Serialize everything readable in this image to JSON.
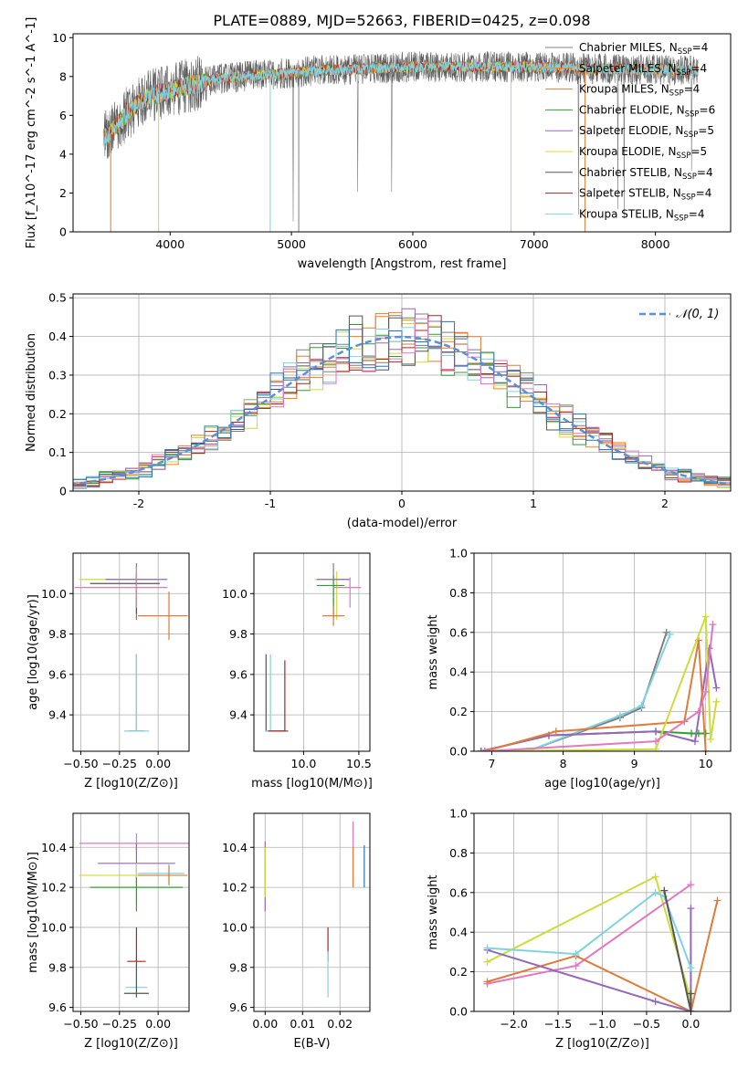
{
  "figure": {
    "title": "PLATE=0889, MJD=52663, FIBERID=0425, z=0.098"
  },
  "legend_entries": [
    {
      "name": "Chabrier MILES",
      "suffix": "4",
      "color": "#7f7f7f"
    },
    {
      "name": "Salpeter MILES",
      "suffix": "4",
      "color": "#ff7f0e"
    },
    {
      "name": "Kroupa MILES",
      "suffix": "4",
      "color": "#e07b39"
    },
    {
      "name": "Chabrier ELODIE",
      "suffix": "6",
      "color": "#2ca02c"
    },
    {
      "name": "Salpeter ELODIE",
      "suffix": "5",
      "color": "#9467bd"
    },
    {
      "name": "Kroupa ELODIE",
      "suffix": "5",
      "color": "#dbdb3d"
    },
    {
      "name": "Chabrier STELIB",
      "suffix": "4",
      "color": "#555555"
    },
    {
      "name": "Salpeter STELIB",
      "suffix": "4",
      "color": "#b22222"
    },
    {
      "name": "Kroupa STELIB",
      "suffix": "4",
      "color": "#7fd3e0"
    }
  ],
  "chart_data": [
    {
      "id": "spectrum",
      "type": "line",
      "xlabel": "wavelength [Angstrom, rest frame]",
      "ylabel": "Flux [f_λ10^-17 erg cm^-2 s^-1 A^-1]",
      "xlim": [
        3200,
        8620
      ],
      "ylim": [
        0,
        10.2
      ],
      "xticks": [
        4000,
        5000,
        6000,
        7000,
        8000
      ],
      "yticks": [
        0,
        2,
        4,
        6,
        8,
        10
      ],
      "continuum": {
        "x": [
          3450,
          3500,
          3600,
          3700,
          3800,
          3900,
          4000,
          4200,
          4400,
          4600,
          4800,
          5000,
          5200,
          5400,
          5600,
          5800,
          6000,
          6200,
          6400,
          6600,
          6800,
          7000,
          7200,
          7400,
          7600,
          7800,
          8000,
          8200,
          8350
        ],
        "y": [
          4.8,
          5.0,
          5.8,
          6.4,
          6.9,
          7.1,
          7.3,
          7.6,
          7.9,
          8.0,
          8.1,
          8.2,
          8.3,
          8.35,
          8.4,
          8.45,
          8.5,
          8.5,
          8.5,
          8.5,
          8.5,
          8.5,
          8.45,
          8.4,
          8.4,
          8.35,
          8.35,
          8.3,
          8.3
        ]
      }
    },
    {
      "id": "residuals",
      "type": "line",
      "xlabel": "(data-model)/error",
      "ylabel": "Normed distribution",
      "xlim": [
        -2.5,
        2.5
      ],
      "ylim": [
        0,
        0.51
      ],
      "xticks": [
        -2,
        -1,
        0,
        1,
        2
      ],
      "yticks": [
        0.0,
        0.1,
        0.2,
        0.3,
        0.4,
        0.5
      ],
      "legend": "𝒩(0, 1)",
      "gaussian": {
        "mu": 0,
        "sigma": 1
      }
    },
    {
      "id": "age-vs-Z",
      "type": "scatter",
      "xlabel": "Z [log10(Z/Z⊙)]",
      "ylabel": "age  [log10(age/yr)]",
      "xlim": [
        -0.55,
        0.2
      ],
      "ylim": [
        9.22,
        10.2
      ],
      "xticks": [
        -0.5,
        -0.25,
        0.0
      ],
      "xticklabels": [
        "−0.50",
        "−0.25",
        "0.00"
      ],
      "yticks": [
        9.4,
        9.6,
        9.8,
        10.0
      ],
      "yticklabels": [
        "9.4",
        "9.6",
        "9.8",
        "10.0"
      ],
      "points": [
        {
          "x": -0.14,
          "y": 10.07,
          "xerr": [
            0.37,
            0.13
          ],
          "yerr": [
            0.2,
            0.04
          ],
          "color": "#cddc39"
        },
        {
          "x": -0.14,
          "y": 10.07,
          "xerr": [
            0.2,
            0.2
          ],
          "yerr": [
            0.2,
            0.08
          ],
          "color": "#9467bd"
        },
        {
          "x": -0.14,
          "y": 10.05,
          "xerr": [
            0.3,
            0.15
          ],
          "yerr": [
            0.15,
            0.05
          ],
          "color": "#555555"
        },
        {
          "x": -0.14,
          "y": 10.03,
          "xerr": [
            0.4,
            0.2
          ],
          "yerr": [
            0.1,
            0.1
          ],
          "color": "#e377c2"
        },
        {
          "x": 0.07,
          "y": 9.89,
          "xerr": [
            0.2,
            0.12
          ],
          "yerr": [
            0.12,
            0.12
          ],
          "color": "#e07b39"
        },
        {
          "x": -0.14,
          "y": 9.32,
          "xerr": [
            0.05,
            0.05
          ],
          "yerr": [
            0.0,
            0.38
          ],
          "color": "#555555"
        },
        {
          "x": -0.14,
          "y": 9.32,
          "xerr": [
            0.08,
            0.08
          ],
          "yerr": [
            0.0,
            0.38
          ],
          "color": "#7fd3e0"
        }
      ]
    },
    {
      "id": "age-vs-mass",
      "type": "scatter",
      "xlabel": "mass [log10(M/M⊙)]",
      "ylabel": "",
      "xlim": [
        9.55,
        10.6
      ],
      "ylim": [
        9.22,
        10.2
      ],
      "xticks": [
        10.0,
        10.5
      ],
      "xticklabels": [
        "10.0",
        "10.5"
      ],
      "yticks": [
        9.4,
        9.6,
        9.8,
        10.0
      ],
      "yticklabels": [
        "9.4",
        "9.6",
        "9.8",
        "10.0"
      ],
      "points": [
        {
          "x": 10.3,
          "y": 10.07,
          "xerr": [
            0.2,
            0.1
          ],
          "yerr": [
            0.2,
            0.04
          ],
          "color": "#cddc39"
        },
        {
          "x": 10.27,
          "y": 10.07,
          "xerr": [
            0.15,
            0.15
          ],
          "yerr": [
            0.2,
            0.08
          ],
          "color": "#9467bd"
        },
        {
          "x": 10.27,
          "y": 10.04,
          "xerr": [
            0.15,
            0.1
          ],
          "yerr": [
            0.15,
            0.05
          ],
          "color": "#2ca02c"
        },
        {
          "x": 10.42,
          "y": 10.03,
          "xerr": [
            0.15,
            0.1
          ],
          "yerr": [
            0.1,
            0.05
          ],
          "color": "#e377c2"
        },
        {
          "x": 10.27,
          "y": 9.89,
          "xerr": [
            0.1,
            0.1
          ],
          "yerr": [
            0.05,
            0.05
          ],
          "color": "#e07b39"
        },
        {
          "x": 9.66,
          "y": 9.32,
          "xerr": [
            0.0,
            0.2
          ],
          "yerr": [
            0.0,
            0.38
          ],
          "color": "#555555"
        },
        {
          "x": 9.7,
          "y": 9.32,
          "xerr": [
            0.05,
            0.08
          ],
          "yerr": [
            0.0,
            0.38
          ],
          "color": "#7fd3e0"
        },
        {
          "x": 9.83,
          "y": 9.32,
          "xerr": [
            0.15,
            0.0
          ],
          "yerr": [
            0.0,
            0.35
          ],
          "color": "#b22222"
        }
      ]
    },
    {
      "id": "mass-weight-vs-age",
      "type": "line",
      "xlabel": "age  [log10(age/yr)]",
      "ylabel": "mass weight",
      "xlim": [
        6.75,
        10.35
      ],
      "ylim": [
        0,
        1.0
      ],
      "xticks": [
        7,
        8,
        9,
        10
      ],
      "xticklabels": [
        "7",
        "8",
        "9",
        "10"
      ],
      "yticks": [
        0.0,
        0.2,
        0.4,
        0.6,
        0.8,
        1.0
      ],
      "yticklabels": [
        "0.0",
        "0.2",
        "0.4",
        "0.6",
        "0.8",
        "1.0"
      ],
      "series": [
        {
          "color": "#7f7f7f",
          "x": [
            6.85,
            7.5,
            8.8,
            9.1,
            9.45
          ],
          "y": [
            0.0,
            0.0,
            0.17,
            0.22,
            0.6
          ]
        },
        {
          "color": "#7fd3e0",
          "x": [
            6.9,
            7.5,
            8.8,
            9.1,
            9.5
          ],
          "y": [
            0.0,
            0.0,
            0.18,
            0.23,
            0.59
          ]
        },
        {
          "color": "#2ca02c",
          "x": [
            6.85,
            7.8,
            9.3,
            9.8,
            9.9,
            10.0
          ],
          "y": [
            0.0,
            0.08,
            0.1,
            0.09,
            0.09,
            0.09
          ]
        },
        {
          "color": "#9467bd",
          "x": [
            6.85,
            7.8,
            9.3,
            9.85,
            10.05,
            10.15
          ],
          "y": [
            0.0,
            0.08,
            0.1,
            0.05,
            0.52,
            0.32
          ]
        },
        {
          "color": "#e07b39",
          "x": [
            6.9,
            7.9,
            9.7,
            9.9,
            10.0
          ],
          "y": [
            0.0,
            0.1,
            0.15,
            0.56,
            0.0
          ]
        },
        {
          "color": "#cddc39",
          "x": [
            6.9,
            9.3,
            10.0,
            10.07,
            10.15
          ],
          "y": [
            0.0,
            0.01,
            0.68,
            0.06,
            0.25
          ]
        },
        {
          "color": "#e377c2",
          "x": [
            6.9,
            9.3,
            9.9,
            10.0,
            10.1
          ],
          "y": [
            0.0,
            0.05,
            0.2,
            0.3,
            0.64
          ]
        }
      ]
    },
    {
      "id": "mass-vs-Z",
      "type": "scatter",
      "xlabel": "Z [log10(Z/Z⊙)]",
      "ylabel": "mass [log10(M/M⊙)]",
      "xlim": [
        -0.55,
        0.2
      ],
      "ylim": [
        9.58,
        10.57
      ],
      "xticks": [
        -0.5,
        -0.25,
        0.0
      ],
      "xticklabels": [
        "−0.50",
        "−0.25",
        "0.00"
      ],
      "yticks": [
        9.6,
        9.8,
        10.0,
        10.2,
        10.4
      ],
      "yticklabels": [
        "9.6",
        "9.8",
        "10.0",
        "10.2",
        "10.4"
      ],
      "points": [
        {
          "x": -0.14,
          "y": 10.42,
          "xerr": [
            0.37,
            0.34
          ],
          "yerr": [
            0.05,
            0.05
          ],
          "color": "#e377c2"
        },
        {
          "x": -0.14,
          "y": 10.32,
          "xerr": [
            0.25,
            0.25
          ],
          "yerr": [
            0.1,
            0.1
          ],
          "color": "#9467bd"
        },
        {
          "x": 0.07,
          "y": 10.27,
          "xerr": [
            0.2,
            0.1
          ],
          "yerr": [
            0.05,
            0.05
          ],
          "color": "#7fd3e0"
        },
        {
          "x": -0.14,
          "y": 10.26,
          "xerr": [
            0.37,
            0.15
          ],
          "yerr": [
            0.14,
            0.06
          ],
          "color": "#cddc39"
        },
        {
          "x": 0.07,
          "y": 10.26,
          "xerr": [
            0.2,
            0.12
          ],
          "yerr": [
            0.05,
            0.05
          ],
          "color": "#e07b39"
        },
        {
          "x": -0.14,
          "y": 10.2,
          "xerr": [
            0.3,
            0.3
          ],
          "yerr": [
            0.12,
            0.05
          ],
          "color": "#2ca02c"
        },
        {
          "x": -0.14,
          "y": 9.83,
          "xerr": [
            0.06,
            0.06
          ],
          "yerr": [
            0.0,
            0.17
          ],
          "color": "#b22222"
        },
        {
          "x": -0.14,
          "y": 9.7,
          "xerr": [
            0.07,
            0.07
          ],
          "yerr": [
            0.05,
            0.12
          ],
          "color": "#7fd3e0"
        },
        {
          "x": -0.14,
          "y": 9.67,
          "xerr": [
            0.08,
            0.08
          ],
          "yerr": [
            0.02,
            0.18
          ],
          "color": "#555555"
        }
      ]
    },
    {
      "id": "mass-vs-EBV",
      "type": "scatter",
      "xlabel": "E(B-V)",
      "ylabel": "",
      "xlim": [
        -0.003,
        0.028
      ],
      "ylim": [
        9.58,
        10.57
      ],
      "xticks": [
        0.0,
        0.01,
        0.02
      ],
      "xticklabels": [
        "0.00",
        "0.01",
        "0.02"
      ],
      "yticks": [
        9.6,
        9.8,
        10.0,
        10.2,
        10.4
      ],
      "yticklabels": [
        "9.6",
        "9.8",
        "10.0",
        "10.2",
        "10.4"
      ],
      "points": [
        {
          "x": 0.0,
          "y": 10.3,
          "xerr": [
            0,
            0
          ],
          "yerr": [
            0.22,
            0.13
          ],
          "color": "#9467bd"
        },
        {
          "x": 0.0,
          "y": 10.3,
          "xerr": [
            0,
            0
          ],
          "yerr": [
            0.15,
            0.1
          ],
          "color": "#cddc39"
        },
        {
          "x": 0.0235,
          "y": 10.37,
          "xerr": [
            0,
            0
          ],
          "yerr": [
            0.17,
            0.16
          ],
          "color": "#e377c2"
        },
        {
          "x": 0.0235,
          "y": 10.3,
          "xerr": [
            0,
            0
          ],
          "yerr": [
            0.1,
            0.1
          ],
          "color": "#e07b39"
        },
        {
          "x": 0.0265,
          "y": 10.3,
          "xerr": [
            0,
            0
          ],
          "yerr": [
            0.1,
            0.11
          ],
          "color": "#1f77b4"
        },
        {
          "x": 0.0168,
          "y": 9.83,
          "xerr": [
            0,
            0
          ],
          "yerr": [
            0.0,
            0.17
          ],
          "color": "#b22222"
        },
        {
          "x": 0.0168,
          "y": 9.75,
          "xerr": [
            0,
            0
          ],
          "yerr": [
            0.1,
            0.13
          ],
          "color": "#7fd3e0"
        }
      ]
    },
    {
      "id": "mass-weight-vs-Z",
      "type": "line",
      "xlabel": "Z [log10(Z/Z⊙)]",
      "ylabel": "mass weight",
      "xlim": [
        -2.45,
        0.45
      ],
      "ylim": [
        0,
        1.0
      ],
      "xticks": [
        -2.0,
        -1.5,
        -1.0,
        -0.5,
        0.0
      ],
      "xticklabels": [
        "−2.0",
        "−1.5",
        "−1.0",
        "−0.5",
        "0.0"
      ],
      "yticks": [
        0.0,
        0.2,
        0.4,
        0.6,
        0.8,
        1.0
      ],
      "yticklabels": [
        "0.0",
        "0.2",
        "0.4",
        "0.6",
        "0.8",
        "1.0"
      ],
      "series": [
        {
          "color": "#cddc39",
          "x": [
            -2.3,
            -0.4,
            0.0
          ],
          "y": [
            0.25,
            0.68,
            0.06
          ]
        },
        {
          "color": "#e377c2",
          "x": [
            -2.3,
            -1.3,
            -0.0
          ],
          "y": [
            0.14,
            0.23,
            0.64
          ]
        },
        {
          "color": "#e07b39",
          "x": [
            -2.3,
            -1.3,
            0.0,
            0.3
          ],
          "y": [
            0.15,
            0.28,
            0.0,
            0.56
          ]
        },
        {
          "color": "#9467bd",
          "x": [
            -2.3,
            -0.4,
            0.0,
            0.0
          ],
          "y": [
            0.31,
            0.05,
            0.0,
            0.52
          ]
        },
        {
          "color": "#7fd3e0",
          "x": [
            -2.3,
            -1.3,
            -0.4,
            -0.3,
            0.0
          ],
          "y": [
            0.32,
            0.29,
            0.6,
            0.58,
            0.22
          ]
        },
        {
          "color": "#555555",
          "x": [
            -0.3,
            0.0,
            0.0
          ],
          "y": [
            0.61,
            0.0,
            0.09
          ]
        }
      ]
    }
  ]
}
